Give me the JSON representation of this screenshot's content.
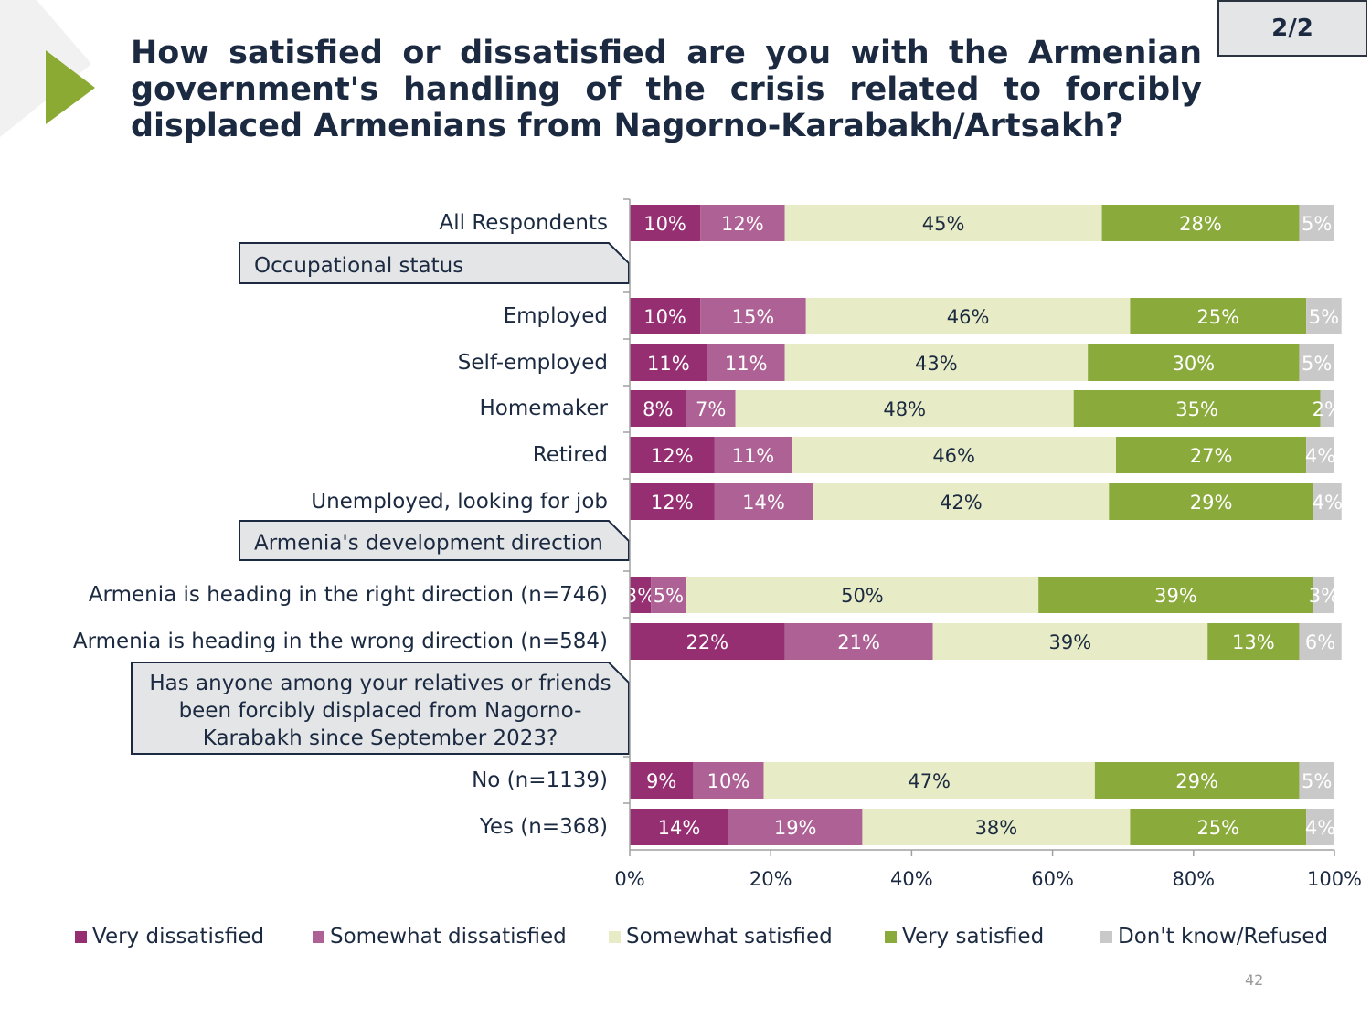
{
  "header": {
    "title": "How satisfied or dissatisfied are you with the Armenian government's handling of the crisis related to forcibly displaced Armenians from Nagorno-Karabakh/Artsakh?",
    "page_indicator": "2/2",
    "page_number": "42",
    "accent_color": "#8aaa33"
  },
  "chart_data": {
    "type": "bar",
    "orientation": "horizontal",
    "stacked": true,
    "title": "",
    "xlabel": "",
    "ylabel": "",
    "xlim": [
      0,
      100
    ],
    "x_ticks": [
      "0%",
      "20%",
      "40%",
      "60%",
      "80%",
      "100%"
    ],
    "grid": false,
    "legend_position": "bottom",
    "series": [
      {
        "name": "Very dissatisfied",
        "color": "#952f72"
      },
      {
        "name": "Somewhat dissatisfied",
        "color": "#ad6194"
      },
      {
        "name": "Somewhat satisfied",
        "color": "#e7ecc6"
      },
      {
        "name": "Very satisfied",
        "color": "#8aaa3c"
      },
      {
        "name": "Don't know/Refused",
        "color": "#c9c9c9"
      }
    ],
    "rows": [
      {
        "kind": "bar",
        "label": "All Respondents",
        "values": [
          10,
          12,
          45,
          28,
          5
        ]
      },
      {
        "kind": "group",
        "label": "Occupational status"
      },
      {
        "kind": "bar",
        "label": "Employed",
        "values": [
          10,
          15,
          46,
          25,
          5
        ]
      },
      {
        "kind": "bar",
        "label": "Self-employed",
        "values": [
          11,
          11,
          43,
          30,
          5
        ]
      },
      {
        "kind": "bar",
        "label": "Homemaker",
        "values": [
          8,
          7,
          48,
          35,
          2
        ]
      },
      {
        "kind": "bar",
        "label": "Retired",
        "values": [
          12,
          11,
          46,
          27,
          4
        ]
      },
      {
        "kind": "bar",
        "label": "Unemployed, looking for job",
        "values": [
          12,
          14,
          42,
          29,
          4
        ]
      },
      {
        "kind": "group",
        "label": "Armenia's development direction"
      },
      {
        "kind": "bar",
        "label": "Armenia is heading in the right direction (n=746)",
        "values": [
          3,
          5,
          50,
          39,
          3
        ]
      },
      {
        "kind": "bar",
        "label": "Armenia is heading in the wrong direction (n=584)",
        "values": [
          22,
          21,
          39,
          13,
          6
        ]
      },
      {
        "kind": "group",
        "label": "Has anyone among your relatives or friends been forcibly displaced from Nagorno-Karabakh since September 2023?",
        "label_lines": [
          "Has anyone among your relatives or friends",
          "been forcibly displaced from Nagorno-",
          "Karabakh since September 2023?"
        ]
      },
      {
        "kind": "bar",
        "label": "No (n=1139)",
        "values": [
          9,
          10,
          47,
          29,
          5
        ]
      },
      {
        "kind": "bar",
        "label": "Yes (n=368)",
        "values": [
          14,
          19,
          38,
          25,
          4
        ]
      }
    ]
  }
}
